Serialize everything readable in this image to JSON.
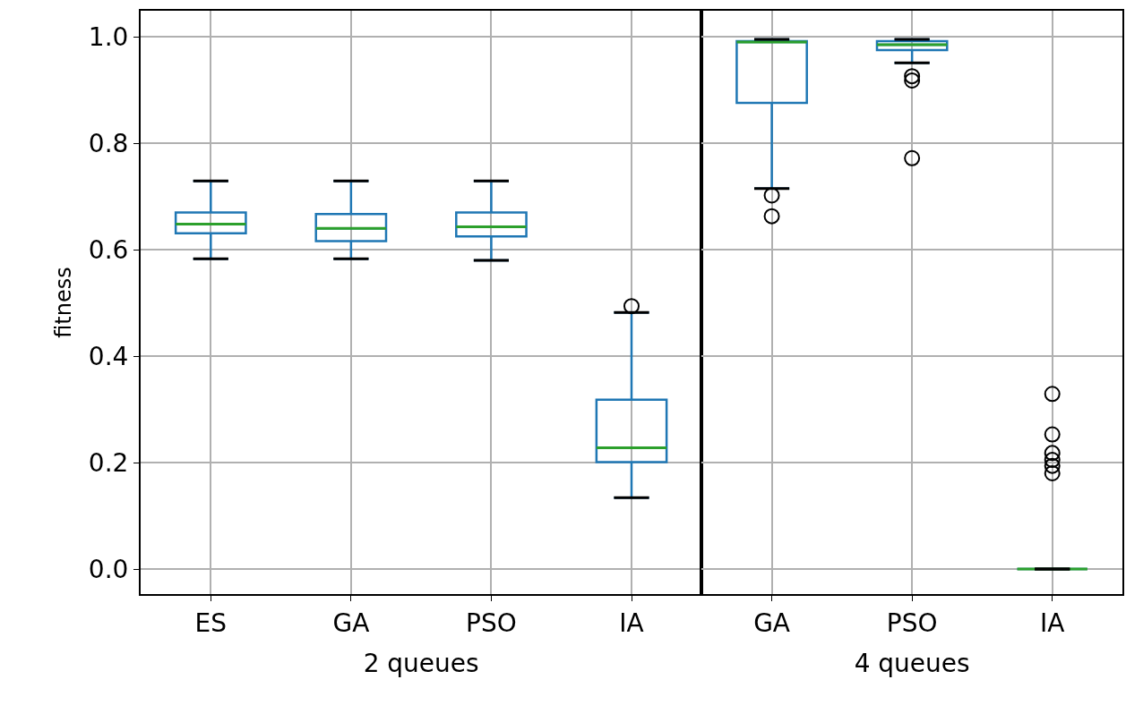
{
  "chart_data": [
    {
      "type": "box",
      "xlabel": "2 queues",
      "ylabel": "fitness",
      "categories": [
        "ES",
        "GA",
        "PSO",
        "IA"
      ],
      "ylim": [
        -0.047,
        1.049
      ],
      "yticks": [
        {
          "value": 0,
          "label": "0.0"
        },
        {
          "value": 0.2,
          "label": "0.2"
        },
        {
          "value": 0.4,
          "label": "0.4"
        },
        {
          "value": 0.6,
          "label": "0.6"
        },
        {
          "value": 0.8,
          "label": "0.8"
        },
        {
          "value": 1,
          "label": "1.0"
        }
      ],
      "grid": true,
      "series": [
        {
          "color": "#1f77b4",
          "boxes": [
            {
              "low": 0.583,
              "q1": 0.631,
              "median": 0.648,
              "q3": 0.67,
              "high": 0.729
            },
            {
              "low": 0.583,
              "q1": 0.616,
              "median": 0.64,
              "q3": 0.667,
              "high": 0.729
            },
            {
              "low": 0.58,
              "q1": 0.625,
              "median": 0.643,
              "q3": 0.67,
              "high": 0.729
            },
            {
              "low": 0.134,
              "q1": 0.201,
              "median": 0.228,
              "q3": 0.318,
              "high": 0.482,
              "outliers": [
                0.494
              ]
            }
          ]
        }
      ]
    },
    {
      "type": "box",
      "xlabel": "4 queues",
      "categories": [
        "GA",
        "PSO",
        "IA"
      ],
      "ylim": [
        -0.047,
        1.049
      ],
      "yticks": [
        0,
        0.2,
        0.4,
        0.6,
        0.8,
        1
      ],
      "tick_labels": "x",
      "grid": true,
      "series": [
        {
          "color": "#1f77b4",
          "boxes": [
            {
              "low": 0.715,
              "q1": 0.876,
              "median": 0.99,
              "q3": 0.992,
              "high": 0.995,
              "outliers": [
                0.702,
                0.663
              ]
            },
            {
              "low": 0.951,
              "q1": 0.975,
              "median": 0.985,
              "q3": 0.992,
              "high": 0.995,
              "outliers": [
                0.926,
                0.918,
                0.772
              ]
            },
            {
              "low": 0,
              "q1": 0,
              "median": 0,
              "q3": 0,
              "high": 0,
              "outliers": [
                0.329,
                0.253,
                0.218,
                0.205,
                0.194,
                0.18
              ]
            }
          ]
        }
      ]
    }
  ]
}
